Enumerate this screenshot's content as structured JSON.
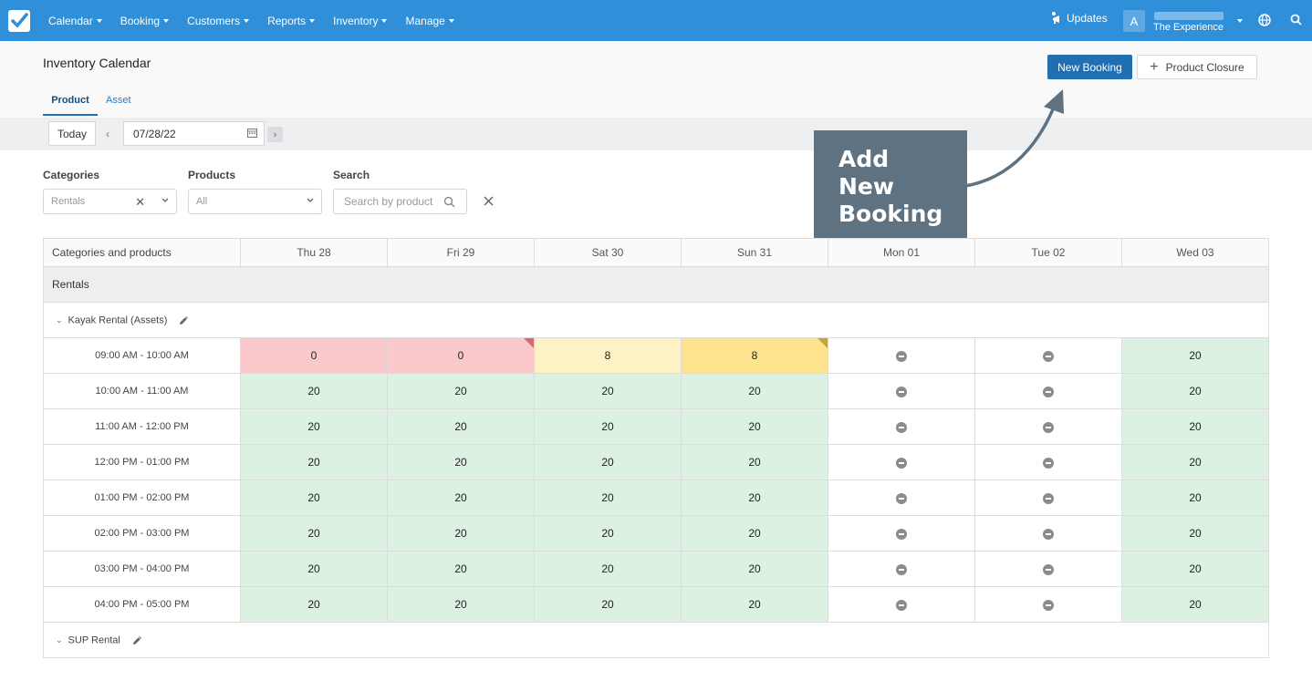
{
  "topbar": {
    "nav": [
      "Calendar",
      "Booking",
      "Customers",
      "Reports",
      "Inventory",
      "Manage"
    ],
    "updates_label": "Updates",
    "avatar_letter": "A",
    "account_name": "The Experience"
  },
  "page": {
    "title": "Inventory Calendar",
    "tabs": [
      {
        "label": "Product",
        "active": true
      },
      {
        "label": "Asset",
        "active": false
      }
    ],
    "new_booking_label": "New Booking",
    "product_closure_label": "Product Closure"
  },
  "datebar": {
    "today_label": "Today",
    "date_value": "07/28/22"
  },
  "filters": {
    "categories_label": "Categories",
    "categories_value": "Rentals",
    "products_label": "Products",
    "products_value": "All",
    "search_label": "Search",
    "search_placeholder": "Search by product"
  },
  "annotation": {
    "lines": [
      "Add",
      "New",
      "Booking"
    ]
  },
  "grid": {
    "first_header": "Categories and products",
    "days": [
      "Thu 28",
      "Fri 29",
      "Sat 30",
      "Sun 31",
      "Mon 01",
      "Tue 02",
      "Wed 03"
    ],
    "category": "Rentals",
    "products": [
      {
        "name": "Kayak Rental (Assets)",
        "slots": [
          {
            "time": "09:00 AM - 10:00 AM",
            "cells": [
              {
                "v": "0",
                "s": "red"
              },
              {
                "v": "0",
                "s": "red",
                "flag": "red"
              },
              {
                "v": "8",
                "s": "lyellow"
              },
              {
                "v": "8",
                "s": "yellow",
                "flag": "gold"
              },
              {
                "v": "",
                "s": "closed"
              },
              {
                "v": "",
                "s": "closed"
              },
              {
                "v": "20",
                "s": "green"
              }
            ]
          },
          {
            "time": "10:00 AM - 11:00 AM",
            "cells": [
              {
                "v": "20",
                "s": "green"
              },
              {
                "v": "20",
                "s": "green"
              },
              {
                "v": "20",
                "s": "green"
              },
              {
                "v": "20",
                "s": "green"
              },
              {
                "v": "",
                "s": "closed"
              },
              {
                "v": "",
                "s": "closed"
              },
              {
                "v": "20",
                "s": "green"
              }
            ]
          },
          {
            "time": "11:00 AM - 12:00 PM",
            "cells": [
              {
                "v": "20",
                "s": "green"
              },
              {
                "v": "20",
                "s": "green"
              },
              {
                "v": "20",
                "s": "green"
              },
              {
                "v": "20",
                "s": "green"
              },
              {
                "v": "",
                "s": "closed"
              },
              {
                "v": "",
                "s": "closed"
              },
              {
                "v": "20",
                "s": "green"
              }
            ]
          },
          {
            "time": "12:00 PM - 01:00 PM",
            "cells": [
              {
                "v": "20",
                "s": "green"
              },
              {
                "v": "20",
                "s": "green"
              },
              {
                "v": "20",
                "s": "green"
              },
              {
                "v": "20",
                "s": "green"
              },
              {
                "v": "",
                "s": "closed"
              },
              {
                "v": "",
                "s": "closed"
              },
              {
                "v": "20",
                "s": "green"
              }
            ]
          },
          {
            "time": "01:00 PM - 02:00 PM",
            "cells": [
              {
                "v": "20",
                "s": "green"
              },
              {
                "v": "20",
                "s": "green"
              },
              {
                "v": "20",
                "s": "green"
              },
              {
                "v": "20",
                "s": "green"
              },
              {
                "v": "",
                "s": "closed"
              },
              {
                "v": "",
                "s": "closed"
              },
              {
                "v": "20",
                "s": "green"
              }
            ]
          },
          {
            "time": "02:00 PM - 03:00 PM",
            "cells": [
              {
                "v": "20",
                "s": "green"
              },
              {
                "v": "20",
                "s": "green"
              },
              {
                "v": "20",
                "s": "green"
              },
              {
                "v": "20",
                "s": "green"
              },
              {
                "v": "",
                "s": "closed"
              },
              {
                "v": "",
                "s": "closed"
              },
              {
                "v": "20",
                "s": "green"
              }
            ]
          },
          {
            "time": "03:00 PM - 04:00 PM",
            "cells": [
              {
                "v": "20",
                "s": "green"
              },
              {
                "v": "20",
                "s": "green"
              },
              {
                "v": "20",
                "s": "green"
              },
              {
                "v": "20",
                "s": "green"
              },
              {
                "v": "",
                "s": "closed"
              },
              {
                "v": "",
                "s": "closed"
              },
              {
                "v": "20",
                "s": "green"
              }
            ]
          },
          {
            "time": "04:00 PM - 05:00 PM",
            "cells": [
              {
                "v": "20",
                "s": "green"
              },
              {
                "v": "20",
                "s": "green"
              },
              {
                "v": "20",
                "s": "green"
              },
              {
                "v": "20",
                "s": "green"
              },
              {
                "v": "",
                "s": "closed"
              },
              {
                "v": "",
                "s": "closed"
              },
              {
                "v": "20",
                "s": "green"
              }
            ]
          }
        ]
      },
      {
        "name": "SUP Rental",
        "slots": []
      }
    ]
  }
}
